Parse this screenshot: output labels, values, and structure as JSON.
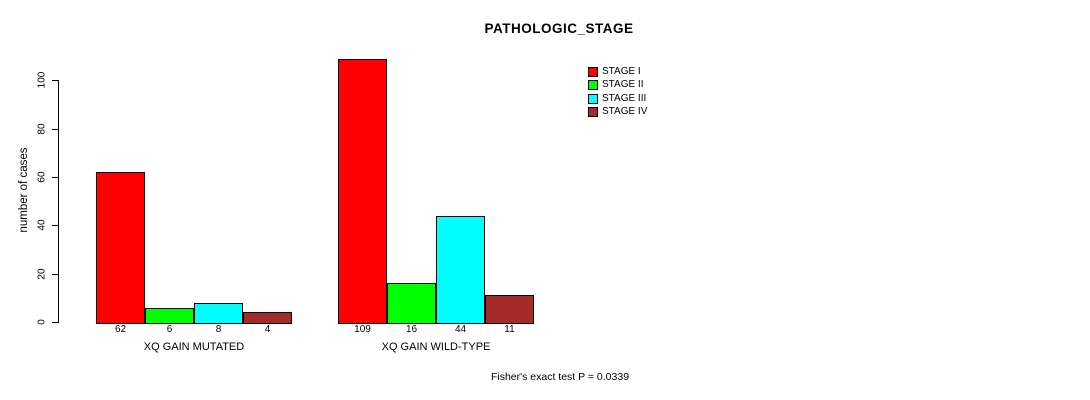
{
  "chart_data": {
    "type": "bar",
    "title": "PATHOLOGIC_STAGE",
    "ylabel": "number of cases",
    "xlabel": "",
    "categories": [
      "XQ GAIN MUTATED",
      "XQ GAIN WILD-TYPE"
    ],
    "series": [
      {
        "name": "STAGE I",
        "color": "#ff0000",
        "values": [
          62,
          109
        ]
      },
      {
        "name": "STAGE II",
        "color": "#00ff00",
        "values": [
          6,
          16
        ]
      },
      {
        "name": "STAGE III",
        "color": "#00ffff",
        "values": [
          8,
          44
        ]
      },
      {
        "name": "STAGE IV",
        "color": "#a52a2a",
        "values": [
          4,
          11
        ]
      }
    ],
    "yticks": [
      0,
      20,
      40,
      60,
      80,
      100
    ],
    "ylim": [
      0,
      109
    ],
    "grid": false,
    "legend_position": "top-right",
    "bar_value_labels": true,
    "annotation": "Fisher's exact test P = 0.0339"
  },
  "colors": {
    "background": "#ffffff",
    "axis": "#000000",
    "text": "#000000"
  }
}
